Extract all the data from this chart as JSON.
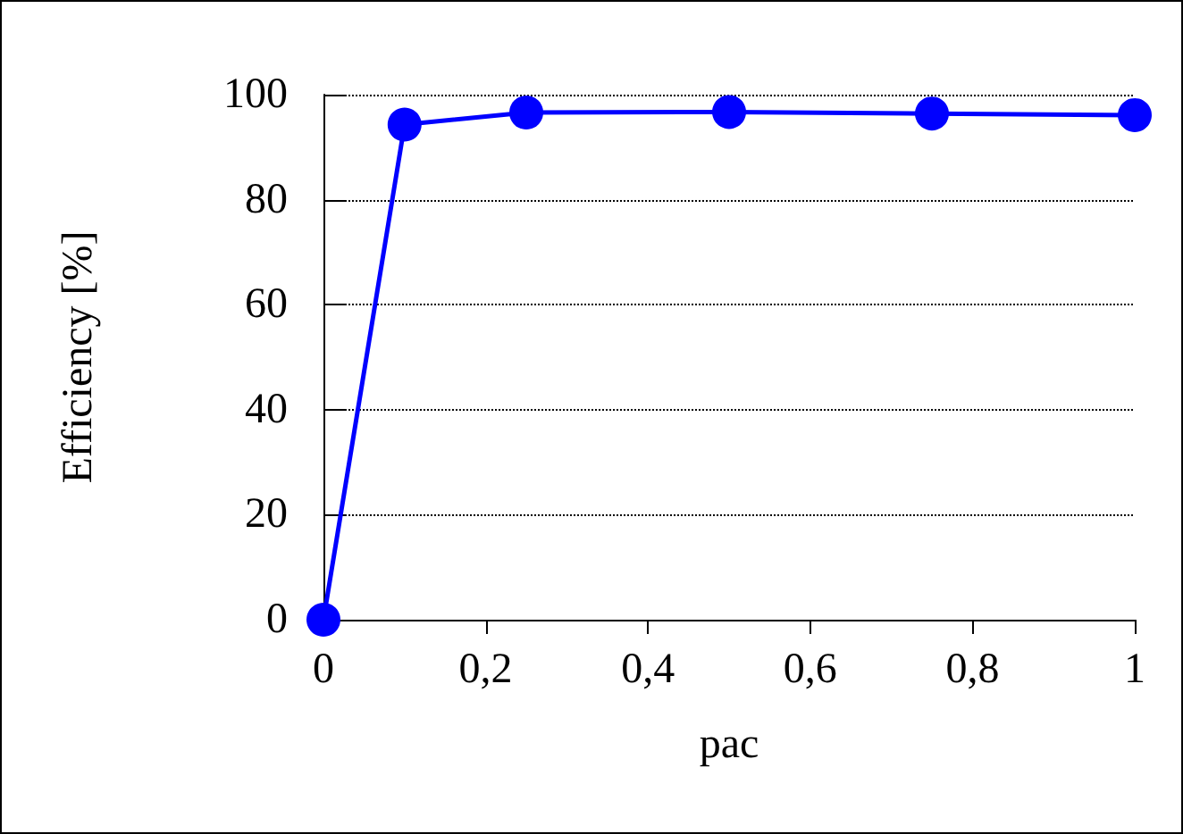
{
  "chart_data": {
    "type": "line",
    "xlabel": "pac",
    "ylabel": "Efficiency [%]",
    "x": [
      0,
      0.1,
      0.25,
      0.5,
      0.75,
      1
    ],
    "series": [
      {
        "color": "#0000ff",
        "values": [
          0,
          94.3,
          96.6,
          96.7,
          96.4,
          96.1
        ]
      }
    ],
    "xlim": [
      0,
      1
    ],
    "xticks": [
      {
        "value": 0,
        "label": "0"
      },
      {
        "value": 0.2,
        "label": "0,2"
      },
      {
        "value": 0.4,
        "label": "0,4"
      },
      {
        "value": 0.6,
        "label": "0,6"
      },
      {
        "value": 0.8,
        "label": "0,8"
      },
      {
        "value": 1,
        "label": "1"
      }
    ],
    "ylim": [
      0,
      100
    ],
    "yticks": [
      0,
      20,
      40,
      60,
      80,
      100
    ],
    "grid": "y",
    "marker": "circle",
    "line_style": "solid"
  }
}
